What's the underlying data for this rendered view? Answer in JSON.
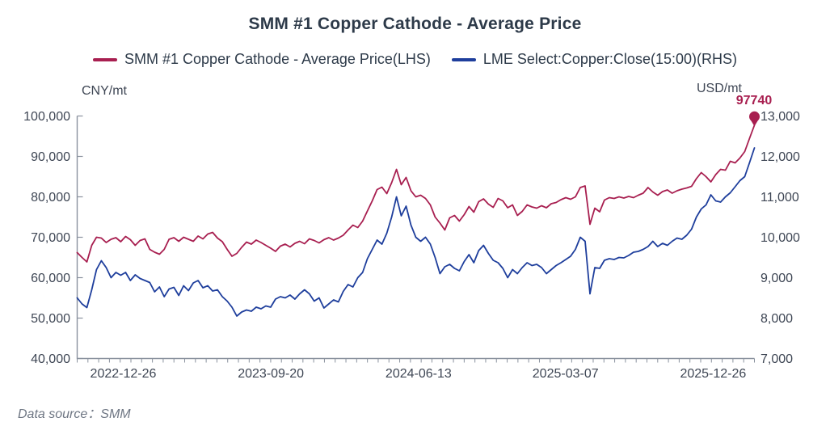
{
  "title": "SMM #1 Copper Cathode - Average Price",
  "legend": [
    {
      "label": "SMM #1 Copper Cathode - Average Price(LHS)",
      "color": "#a81f50"
    },
    {
      "label": "LME Select:Copper:Close(15:00)(RHS)",
      "color": "#1e3e9c"
    }
  ],
  "annotation": {
    "text": "97740",
    "color": "#a81f50"
  },
  "footer": "Data source：SMM",
  "chart_data": {
    "type": "line",
    "title": "SMM #1 Copper Cathode - Average Price",
    "grid": false,
    "legend_position": "top",
    "left_axis": {
      "unit": "CNY/mt",
      "min": 40000,
      "max": 100000,
      "tick_values": [
        100000,
        90000,
        80000,
        70000,
        60000,
        50000,
        40000
      ]
    },
    "right_axis": {
      "unit": "USD/mt",
      "min": 7000,
      "max": 13000,
      "tick_values": [
        13000,
        12000,
        11000,
        10000,
        9000,
        8000,
        7000
      ]
    },
    "x_ticks": [
      {
        "label": "2022-12-26",
        "pos": 0.068
      },
      {
        "label": "2023-09-20",
        "pos": 0.286
      },
      {
        "label": "2024-06-13",
        "pos": 0.504
      },
      {
        "label": "2025-03-07",
        "pos": 0.721
      },
      {
        "label": "2025-12-26",
        "pos": 0.939
      }
    ],
    "series": [
      {
        "name": "SMM #1 Copper Cathode - Average Price(LHS)",
        "axis": "left_axis",
        "color": "#a81f50",
        "values": [
          66200,
          65000,
          63900,
          68000,
          70000,
          69800,
          68700,
          69500,
          69900,
          68900,
          70200,
          69400,
          68000,
          69200,
          69600,
          67000,
          66300,
          65800,
          67000,
          69500,
          69900,
          69000,
          70000,
          69500,
          69000,
          70300,
          69600,
          70800,
          71200,
          69800,
          68900,
          67000,
          65300,
          66000,
          67500,
          68800,
          68300,
          69300,
          68700,
          68000,
          67300,
          66500,
          67800,
          68300,
          67600,
          68500,
          69000,
          68400,
          69600,
          69200,
          68600,
          69400,
          69900,
          69300,
          69800,
          70500,
          71800,
          73000,
          72400,
          74000,
          76500,
          79000,
          81800,
          82400,
          80800,
          83500,
          86800,
          83000,
          84800,
          81500,
          80000,
          80400,
          79600,
          78000,
          75000,
          73500,
          71800,
          74800,
          75400,
          74000,
          75600,
          77600,
          76200,
          78800,
          79500,
          78200,
          77400,
          79600,
          79000,
          77300,
          78000,
          75400,
          76400,
          78000,
          77500,
          77200,
          77800,
          77300,
          78300,
          78600,
          79300,
          79800,
          79400,
          80000,
          82300,
          82700,
          73200,
          77200,
          76300,
          79200,
          79800,
          79600,
          80000,
          79700,
          80100,
          79800,
          80400,
          80900,
          82300,
          81200,
          80400,
          81300,
          81700,
          80900,
          81500,
          81900,
          82200,
          82600,
          84500,
          86000,
          85000,
          83700,
          85500,
          86800,
          86600,
          88800,
          88400,
          89600,
          91200,
          94500,
          97740
        ]
      },
      {
        "name": "LME Select:Copper:Close(15:00)(RHS)",
        "axis": "right_axis",
        "color": "#1e3e9c",
        "values": [
          8500,
          8350,
          8260,
          8700,
          9200,
          9420,
          9250,
          9000,
          9130,
          9060,
          9130,
          8930,
          9070,
          8980,
          8930,
          8880,
          8650,
          8770,
          8530,
          8720,
          8760,
          8560,
          8800,
          8680,
          8870,
          8930,
          8750,
          8800,
          8670,
          8700,
          8530,
          8420,
          8270,
          8050,
          8150,
          8200,
          8170,
          8270,
          8230,
          8300,
          8270,
          8470,
          8530,
          8500,
          8570,
          8470,
          8600,
          8700,
          8600,
          8420,
          8500,
          8250,
          8350,
          8450,
          8400,
          8660,
          8830,
          8770,
          9000,
          9130,
          9470,
          9700,
          9930,
          9830,
          10100,
          10500,
          11000,
          10530,
          10770,
          10300,
          10000,
          9900,
          10000,
          9830,
          9500,
          9100,
          9270,
          9330,
          9230,
          9170,
          9400,
          9570,
          9370,
          9670,
          9800,
          9600,
          9430,
          9370,
          9230,
          9000,
          9200,
          9100,
          9250,
          9370,
          9300,
          9330,
          9250,
          9100,
          9200,
          9300,
          9370,
          9450,
          9530,
          9700,
          10000,
          9900,
          8600,
          9250,
          9230,
          9430,
          9470,
          9450,
          9500,
          9490,
          9550,
          9630,
          9650,
          9700,
          9770,
          9900,
          9770,
          9850,
          9800,
          9900,
          9980,
          9950,
          10050,
          10200,
          10500,
          10700,
          10800,
          11050,
          10900,
          10870,
          11000,
          11100,
          11250,
          11400,
          11500,
          11850,
          12210
        ]
      }
    ],
    "end_label": {
      "series": 0,
      "value": 97740,
      "text": "97740"
    }
  }
}
